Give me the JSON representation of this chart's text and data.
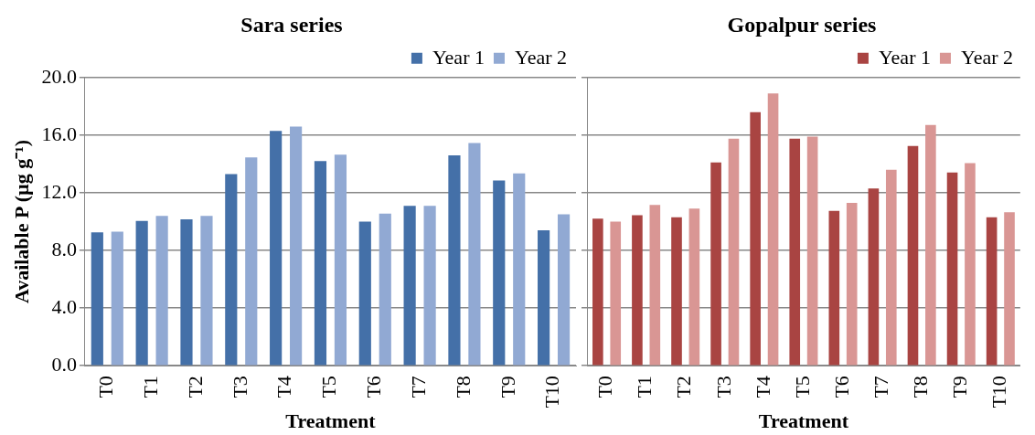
{
  "chart_data": [
    {
      "type": "bar",
      "title": "Sara series",
      "xlabel": "Treatment",
      "ylabel": "Available P (µg g⁻¹)",
      "categories": [
        "T0",
        "T1",
        "T2",
        "T3",
        "T4",
        "T5",
        "T6",
        "T7",
        "T8",
        "T9",
        "T10"
      ],
      "series": [
        {
          "name": "Year 1",
          "color": "#4470a8",
          "values": [
            9.25,
            10.05,
            10.15,
            13.3,
            16.3,
            14.2,
            10.0,
            11.1,
            14.6,
            12.85,
            9.4
          ]
        },
        {
          "name": "Year 2",
          "color": "#91a9d3",
          "values": [
            9.3,
            10.4,
            10.4,
            14.45,
            16.6,
            14.65,
            10.55,
            11.1,
            15.45,
            13.35,
            10.5
          ]
        }
      ],
      "ylim": [
        0,
        20
      ],
      "yticks": [
        {
          "value": 0,
          "label": "0.0"
        },
        {
          "value": 4,
          "label": "4.0"
        },
        {
          "value": 8,
          "label": "8.0"
        },
        {
          "value": 12,
          "label": "12.0"
        },
        {
          "value": 16,
          "label": "16.0"
        },
        {
          "value": 20,
          "label": "20.0"
        }
      ],
      "grid": "y",
      "legend": "top right"
    },
    {
      "type": "bar",
      "title": "Gopalpur series",
      "xlabel": "Treatment",
      "categories": [
        "T0",
        "T1",
        "T2",
        "T3",
        "T4",
        "T5",
        "T6",
        "T7",
        "T8",
        "T9",
        "T10"
      ],
      "series": [
        {
          "name": "Year 1",
          "color": "#a94442",
          "values": [
            10.2,
            10.45,
            10.3,
            14.1,
            17.6,
            15.75,
            10.75,
            12.3,
            15.25,
            13.4,
            10.3
          ]
        },
        {
          "name": "Year 2",
          "color": "#d99694",
          "values": [
            10.0,
            11.15,
            10.9,
            15.75,
            18.9,
            15.9,
            11.3,
            13.6,
            16.7,
            14.05,
            10.65
          ]
        }
      ],
      "ylim": [
        0,
        20
      ],
      "yticks": [
        {
          "value": 0,
          "label": null
        },
        {
          "value": 4,
          "label": null
        },
        {
          "value": 8,
          "label": null
        },
        {
          "value": 12,
          "label": null
        },
        {
          "value": 16,
          "label": null
        },
        {
          "value": 20,
          "label": null
        }
      ],
      "grid": "y",
      "legend": "top right",
      "tick_labels": "x"
    }
  ]
}
